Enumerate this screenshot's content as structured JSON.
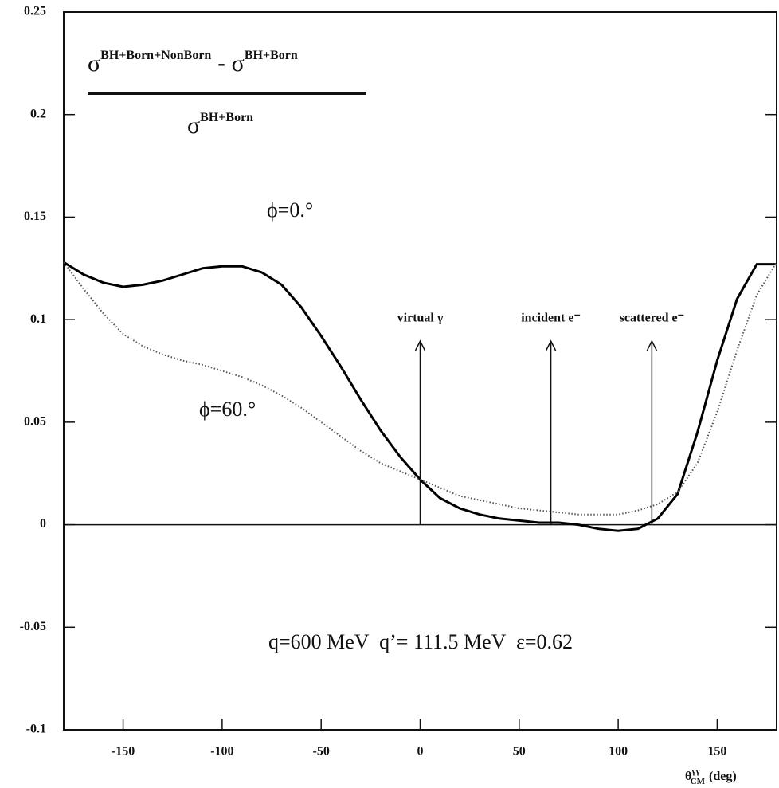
{
  "chart_data": {
    "type": "line",
    "x": [
      -180,
      -170,
      -160,
      -150,
      -140,
      -130,
      -120,
      -110,
      -100,
      -90,
      -80,
      -70,
      -60,
      -50,
      -40,
      -30,
      -20,
      -10,
      0,
      10,
      20,
      30,
      40,
      50,
      60,
      70,
      80,
      90,
      100,
      110,
      120,
      130,
      140,
      150,
      160,
      170,
      180
    ],
    "series": [
      {
        "name": "ϕ=0.°",
        "color": "#000000",
        "style": "solid",
        "values": [
          0.128,
          0.122,
          0.118,
          0.116,
          0.117,
          0.119,
          0.122,
          0.125,
          0.126,
          0.126,
          0.123,
          0.117,
          0.106,
          0.092,
          0.077,
          0.061,
          0.046,
          0.033,
          0.022,
          0.013,
          0.008,
          0.005,
          0.003,
          0.002,
          0.001,
          0.001,
          0,
          -0.002,
          -0.003,
          -0.002,
          0.003,
          0.015,
          0.045,
          0.08,
          0.11,
          0.127,
          0.127
        ]
      },
      {
        "name": "ϕ=60.°",
        "color": "#555555",
        "style": "dotted",
        "values": [
          0.128,
          0.115,
          0.103,
          0.093,
          0.087,
          0.083,
          0.08,
          0.078,
          0.075,
          0.072,
          0.068,
          0.063,
          0.057,
          0.05,
          0.043,
          0.036,
          0.03,
          0.026,
          0.022,
          0.018,
          0.014,
          0.012,
          0.01,
          0.008,
          0.007,
          0.006,
          0.005,
          0.005,
          0.005,
          0.007,
          0.01,
          0.016,
          0.03,
          0.055,
          0.085,
          0.112,
          0.128
        ]
      }
    ],
    "xlim": [
      -180,
      180
    ],
    "xticks": [
      -150,
      -100,
      -50,
      0,
      50,
      100,
      150
    ],
    "ylim": [
      -0.1,
      0.25
    ],
    "yticks": [
      -0.1,
      -0.05,
      0,
      0.05,
      0.1,
      0.15,
      0.2,
      0.25
    ],
    "xlabel": {
      "base": "θ",
      "sup": "γγ",
      "sub": "CM",
      "unit": "(deg)"
    },
    "formula": {
      "numerator": {
        "a": {
          "base": "σ",
          "sup": "BH+Born+NonBorn"
        },
        "op": "-",
        "b": {
          "base": "σ",
          "sup": "BH+Born"
        }
      },
      "denominator": {
        "base": "σ",
        "sup": "BH+Born"
      }
    },
    "arrows": [
      {
        "label": "virtual γ",
        "x": 0
      },
      {
        "label": "incident e⁻",
        "x": 66
      },
      {
        "label": "scattered e⁻",
        "x": 117
      }
    ],
    "conditions": "q=600 MeV  q’= 111.5 MeV  ε=0.62"
  }
}
